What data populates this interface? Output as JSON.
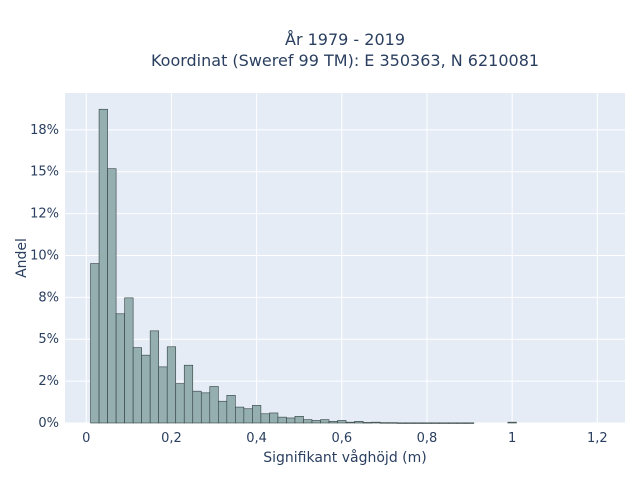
{
  "chart_data": {
    "type": "bar",
    "title_line1": "År 1979 - 2019",
    "title_line2": "Koordinat (Sweref 99 TM): E 350363, N 6210081",
    "xlabel": "Signifikant våghöjd (m)",
    "ylabel": "Andel",
    "xlim": [
      -0.05,
      1.265
    ],
    "ylim": [
      0,
      0.197
    ],
    "x_ticks": [
      0,
      0.2,
      0.4,
      0.6,
      0.8,
      1,
      1.2
    ],
    "x_tick_labels": [
      "0",
      "0,2",
      "0,4",
      "0,6",
      "0,8",
      "1",
      "1,2"
    ],
    "y_ticks": [
      0,
      0.025,
      0.05,
      0.075,
      0.1,
      0.125,
      0.15,
      0.175
    ],
    "y_tick_labels": [
      "0%",
      "2%",
      "5%",
      "8%",
      "10%",
      "12%",
      "15%",
      "18%"
    ],
    "bin_width": 0.02,
    "bin_starts": [
      0.01,
      0.03,
      0.05,
      0.07,
      0.09,
      0.11,
      0.13,
      0.15,
      0.17,
      0.19,
      0.21,
      0.23,
      0.25,
      0.27,
      0.29,
      0.31,
      0.33,
      0.35,
      0.37,
      0.39,
      0.41,
      0.43,
      0.45,
      0.47,
      0.49,
      0.51,
      0.53,
      0.55,
      0.57,
      0.59,
      0.61,
      0.63,
      0.65,
      0.67,
      0.69,
      0.71,
      0.73,
      0.75,
      0.77,
      0.79,
      0.81,
      0.83,
      0.85,
      0.87,
      0.89,
      0.91,
      0.93,
      0.95,
      0.97,
      0.99
    ],
    "values": [
      0.0952,
      0.1873,
      0.1518,
      0.0652,
      0.0747,
      0.045,
      0.0405,
      0.055,
      0.0335,
      0.0455,
      0.0235,
      0.0345,
      0.019,
      0.018,
      0.0218,
      0.013,
      0.0165,
      0.0095,
      0.0085,
      0.0105,
      0.0055,
      0.006,
      0.0035,
      0.003,
      0.004,
      0.002,
      0.0015,
      0.002,
      0.001,
      0.0015,
      0.0005,
      0.001,
      0.0003,
      0.0005,
      0.0002,
      0.0002,
      0.0001,
      0.0001,
      0.0001,
      0.0001,
      0.0001,
      0.0001,
      0.0001,
      0.0001,
      0.0001,
      0,
      0,
      0,
      0,
      0.0005
    ],
    "bar_color": "#95afb0",
    "bar_edge_color": "#2f3f3f",
    "plot_bg": "#e5ecf6",
    "grid": true
  }
}
